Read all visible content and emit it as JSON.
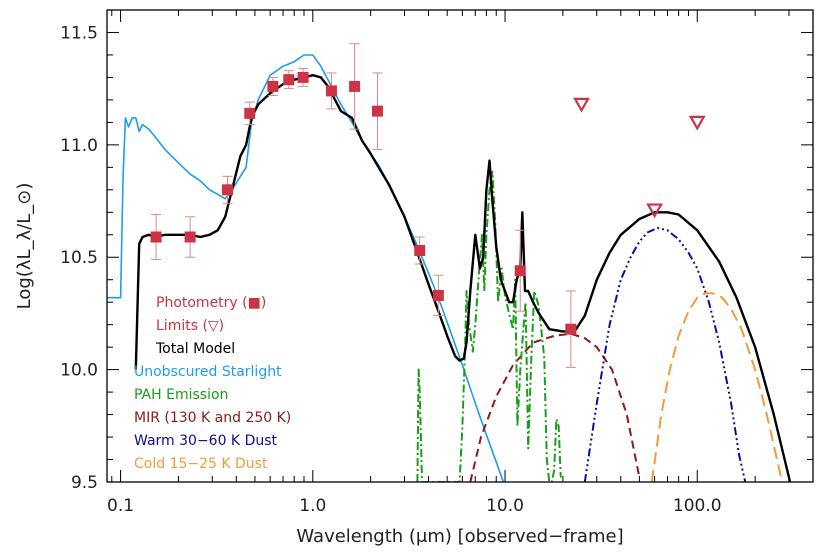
{
  "chart_data": {
    "type": "line",
    "title": "",
    "xlabel": "Wavelength (μm) [observed−frame]",
    "ylabel": "Log(λL_λ/L_⊙)",
    "xscale": "log",
    "xlim": [
      0.085,
      400
    ],
    "ylim": [
      9.5,
      11.6
    ],
    "x_ticks": [
      0.1,
      1.0,
      10.0,
      100.0
    ],
    "x_tick_labels": [
      "0.1",
      "1.0",
      "10.0",
      "100.0"
    ],
    "y_ticks": [
      9.5,
      10.0,
      10.5,
      11.0,
      11.5
    ],
    "y_tick_labels": [
      "9.5",
      "10.0",
      "10.5",
      "11.0",
      "11.5"
    ],
    "grid": false,
    "legend_position": "lower-left",
    "colors": {
      "photometry": "#cc3344",
      "total": "#000000",
      "starlight": "#1f9ee8",
      "pah": "#1a9e1a",
      "mir": "#8b1a1a",
      "warm": "#0d0d99",
      "cold": "#f59a3c",
      "errorbar": "#d98a8a"
    },
    "legend": [
      {
        "label": "Photometry (■)",
        "color": "#cc3344"
      },
      {
        "label": "Limits (▽)",
        "color": "#cc3344"
      },
      {
        "label": "Total Model",
        "color": "#000000"
      },
      {
        "label": "Unobscured Starlight",
        "color": "#1f9ee8"
      },
      {
        "label": "PAH Emission",
        "color": "#1a9e1a"
      },
      {
        "label": "MIR (130 K and 250 K)",
        "color": "#8b1a1a"
      },
      {
        "label": "Warm 30−60 K Dust",
        "color": "#0d0d99"
      },
      {
        "label": "Cold 15−25 K Dust",
        "color": "#f59a3c"
      }
    ],
    "photometry": [
      {
        "x": 0.153,
        "y": 10.59,
        "yerr": 0.1
      },
      {
        "x": 0.23,
        "y": 10.59,
        "yerr": 0.09
      },
      {
        "x": 0.36,
        "y": 10.8,
        "yerr": 0.06
      },
      {
        "x": 0.47,
        "y": 11.14,
        "yerr": 0.05
      },
      {
        "x": 0.62,
        "y": 11.26,
        "yerr": 0.04
      },
      {
        "x": 0.75,
        "y": 11.29,
        "yerr": 0.04
      },
      {
        "x": 0.89,
        "y": 11.3,
        "yerr": 0.04
      },
      {
        "x": 1.25,
        "y": 11.24,
        "yerr": 0.08
      },
      {
        "x": 1.65,
        "y": 11.26,
        "yerr": 0.19
      },
      {
        "x": 2.17,
        "y": 11.15,
        "yerr": 0.17
      },
      {
        "x": 3.6,
        "y": 10.53,
        "yerr": 0.06
      },
      {
        "x": 4.5,
        "y": 10.33,
        "yerr": 0.09
      },
      {
        "x": 12.0,
        "y": 10.44,
        "yerr": 0.18
      },
      {
        "x": 22.0,
        "y": 10.18,
        "yerr": 0.17
      }
    ],
    "limits": [
      {
        "x": 25.0,
        "y": 11.18
      },
      {
        "x": 60.0,
        "y": 10.71
      },
      {
        "x": 100.0,
        "y": 11.1
      }
    ],
    "series": [
      {
        "key": "starlight",
        "x": [
          0.085,
          0.1,
          0.103,
          0.106,
          0.11,
          0.115,
          0.12,
          0.125,
          0.13,
          0.135,
          0.14,
          0.15,
          0.17,
          0.2,
          0.23,
          0.26,
          0.29,
          0.32,
          0.35,
          0.38,
          0.42,
          0.45,
          0.48,
          0.52,
          0.6,
          0.7,
          0.8,
          0.9,
          1.0,
          1.1,
          1.2,
          1.4,
          1.6,
          1.8,
          2.0,
          2.2,
          2.5,
          3.0,
          3.5,
          4.0,
          4.5,
          5.0,
          6.0,
          7.0,
          8.0,
          9.0,
          10.0
        ],
        "y": [
          10.32,
          10.32,
          10.85,
          11.12,
          11.08,
          11.12,
          11.12,
          11.06,
          11.09,
          11.08,
          11.07,
          11.04,
          10.98,
          10.92,
          10.87,
          10.84,
          10.8,
          10.78,
          10.76,
          10.8,
          10.86,
          10.9,
          11.1,
          11.2,
          11.31,
          11.35,
          11.37,
          11.4,
          11.4,
          11.35,
          11.29,
          11.18,
          11.1,
          11.02,
          10.96,
          10.91,
          10.82,
          10.68,
          10.55,
          10.43,
          10.32,
          10.21,
          10.02,
          9.85,
          9.71,
          9.59,
          9.48
        ]
      },
      {
        "key": "total",
        "x": [
          0.12,
          0.125,
          0.13,
          0.14,
          0.15,
          0.17,
          0.2,
          0.23,
          0.26,
          0.29,
          0.32,
          0.35,
          0.38,
          0.42,
          0.45,
          0.48,
          0.52,
          0.6,
          0.7,
          0.8,
          0.9,
          1.0,
          1.1,
          1.2,
          1.4,
          1.6,
          1.8,
          2.0,
          2.2,
          2.5,
          3.0,
          3.5,
          4.0,
          4.5,
          5.0,
          5.5,
          5.8,
          6.1,
          6.3,
          6.6,
          7.0,
          7.4,
          7.7,
          8.0,
          8.3,
          8.6,
          9.0,
          9.5,
          10.0,
          10.5,
          11.0,
          11.5,
          12.0,
          12.3,
          12.7,
          13.2,
          14.0,
          15.0,
          17.0,
          20.0,
          23.0,
          26.0,
          30.0,
          35.0,
          40.0,
          50.0,
          60.0,
          70.0,
          80.0,
          100.0,
          130.0,
          160.0,
          200.0,
          250.0,
          300.0,
          330.0
        ],
        "y": [
          10.0,
          10.56,
          10.59,
          10.6,
          10.59,
          10.6,
          10.6,
          10.6,
          10.59,
          10.6,
          10.62,
          10.68,
          10.8,
          10.95,
          11.0,
          11.12,
          11.18,
          11.23,
          11.27,
          11.29,
          11.3,
          11.31,
          11.3,
          11.26,
          11.15,
          11.12,
          11.02,
          10.96,
          10.9,
          10.82,
          10.68,
          10.52,
          10.38,
          10.26,
          10.15,
          10.06,
          10.04,
          10.05,
          10.12,
          10.35,
          10.6,
          10.45,
          10.5,
          10.8,
          10.93,
          10.75,
          10.55,
          10.4,
          10.35,
          10.3,
          10.3,
          10.4,
          10.45,
          10.7,
          10.35,
          10.35,
          10.3,
          10.25,
          10.18,
          10.17,
          10.17,
          10.24,
          10.4,
          10.52,
          10.6,
          10.67,
          10.7,
          10.7,
          10.69,
          10.62,
          10.48,
          10.32,
          10.1,
          9.8,
          9.52,
          9.35
        ]
      },
      {
        "key": "pah",
        "x": [
          3.5,
          3.55,
          3.6,
          3.65,
          3.7,
          5.8,
          6.0,
          6.2,
          6.3,
          6.5,
          6.8,
          7.0,
          7.3,
          7.6,
          7.8,
          8.0,
          8.3,
          8.6,
          8.9,
          9.2,
          9.6,
          10.0,
          10.5,
          11.0,
          11.3,
          11.6,
          12.0,
          12.5,
          12.8,
          13.2,
          13.7,
          14.2,
          15.0,
          16.0,
          16.5,
          17.0,
          17.5,
          18.0,
          18.5,
          19.0,
          19.5
        ],
        "y": [
          9.5,
          10.0,
          9.9,
          9.7,
          9.5,
          9.5,
          9.75,
          10.1,
          10.35,
          10.2,
          10.08,
          10.2,
          10.42,
          10.6,
          10.35,
          10.6,
          10.8,
          10.88,
          10.65,
          10.3,
          10.45,
          10.33,
          10.25,
          10.18,
          10.4,
          9.75,
          10.0,
          10.2,
          10.3,
          9.65,
          10.05,
          10.35,
          10.28,
          10.05,
          9.6,
          9.5,
          9.5,
          9.55,
          9.78,
          9.75,
          9.52
        ]
      },
      {
        "key": "mir",
        "x": [
          6.6,
          7.5,
          9.0,
          11.0,
          14.0,
          18.0,
          22.0,
          26.0,
          30.0,
          36.0,
          43.0,
          50.0
        ],
        "y": [
          9.5,
          9.7,
          9.88,
          10.02,
          10.12,
          10.15,
          10.16,
          10.14,
          10.1,
          10.0,
          9.8,
          9.52
        ]
      },
      {
        "key": "warm",
        "x": [
          26.0,
          30.0,
          35.0,
          40.0,
          45.0,
          50.0,
          55.0,
          62.0,
          70.0,
          80.0,
          90.0,
          100.0,
          115.0,
          130.0,
          150.0,
          165.0,
          180.0
        ],
        "y": [
          9.5,
          9.85,
          10.2,
          10.4,
          10.5,
          10.57,
          10.61,
          10.63,
          10.62,
          10.58,
          10.52,
          10.45,
          10.3,
          10.12,
          9.85,
          9.62,
          9.48
        ]
      },
      {
        "key": "cold",
        "x": [
          58.0,
          65.0,
          72.0,
          80.0,
          90.0,
          100.0,
          110.0,
          120.0,
          135.0,
          150.0,
          170.0,
          200.0,
          230.0,
          260.0,
          280.0
        ],
        "y": [
          9.5,
          9.8,
          10.0,
          10.15,
          10.26,
          10.32,
          10.34,
          10.34,
          10.32,
          10.27,
          10.18,
          10.0,
          9.8,
          9.6,
          9.48
        ]
      }
    ]
  }
}
